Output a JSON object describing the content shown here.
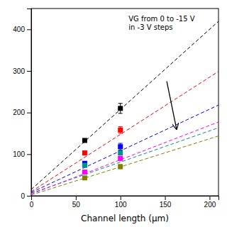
{
  "chart_data": {
    "type": "scatter",
    "xlabel": "Channel length (μm)",
    "annotations": [
      "VG from 0 to -15 V",
      "in -3 V steps"
    ],
    "arrow": {
      "from": [
        152,
        275
      ],
      "to": [
        163,
        160
      ]
    },
    "x": [
      60,
      100
    ],
    "xlim": [
      0,
      210
    ],
    "ylim": [
      0,
      450
    ],
    "xticks": [
      0,
      50,
      100,
      150,
      200
    ],
    "yticks": [
      0,
      100,
      200,
      300,
      400
    ],
    "grid": false,
    "series": [
      {
        "type": "scatter",
        "marker": "square",
        "color": "black",
        "values": [
          133,
          210
        ],
        "errors": [
          4,
          12
        ]
      },
      {
        "type": "scatter",
        "marker": "square",
        "color": "red",
        "values": [
          103,
          158
        ],
        "errors": [
          4,
          8
        ]
      },
      {
        "type": "scatter",
        "marker": "square",
        "color": "blue",
        "values": [
          78,
          118
        ],
        "errors": [
          4,
          8
        ]
      },
      {
        "type": "scatter",
        "marker": "square",
        "color": "#009090",
        "values": [
          73,
          103
        ],
        "errors": [
          3,
          5
        ]
      },
      {
        "type": "scatter",
        "marker": "square",
        "color": "magenta",
        "values": [
          57,
          90
        ],
        "errors": [
          3,
          5
        ]
      },
      {
        "type": "scatter",
        "marker": "square",
        "color": "#808000",
        "values": [
          43,
          70
        ],
        "errors": [
          3,
          5
        ]
      },
      {
        "type": "line",
        "line_style": "dashed",
        "color": "black",
        "x": [
          0,
          210
        ],
        "values": [
          15,
          419.25
        ]
      },
      {
        "type": "line",
        "line_style": "dashed",
        "color": "red",
        "x": [
          0,
          210
        ],
        "values": [
          10,
          298.75
        ]
      },
      {
        "type": "line",
        "line_style": "dashed",
        "color": "blue",
        "x": [
          0,
          210
        ],
        "values": [
          8,
          218
        ]
      },
      {
        "type": "line",
        "line_style": "dashed",
        "color": "#009090",
        "x": [
          0,
          210
        ],
        "values": [
          6,
          163.5
        ]
      },
      {
        "type": "line",
        "line_style": "dashed",
        "color": "magenta",
        "x": [
          0,
          210
        ],
        "values": [
          4,
          177.25
        ]
      },
      {
        "type": "line",
        "line_style": "dashed",
        "color": "#808000",
        "x": [
          0,
          210
        ],
        "values": [
          2,
          143.75
        ]
      }
    ]
  }
}
